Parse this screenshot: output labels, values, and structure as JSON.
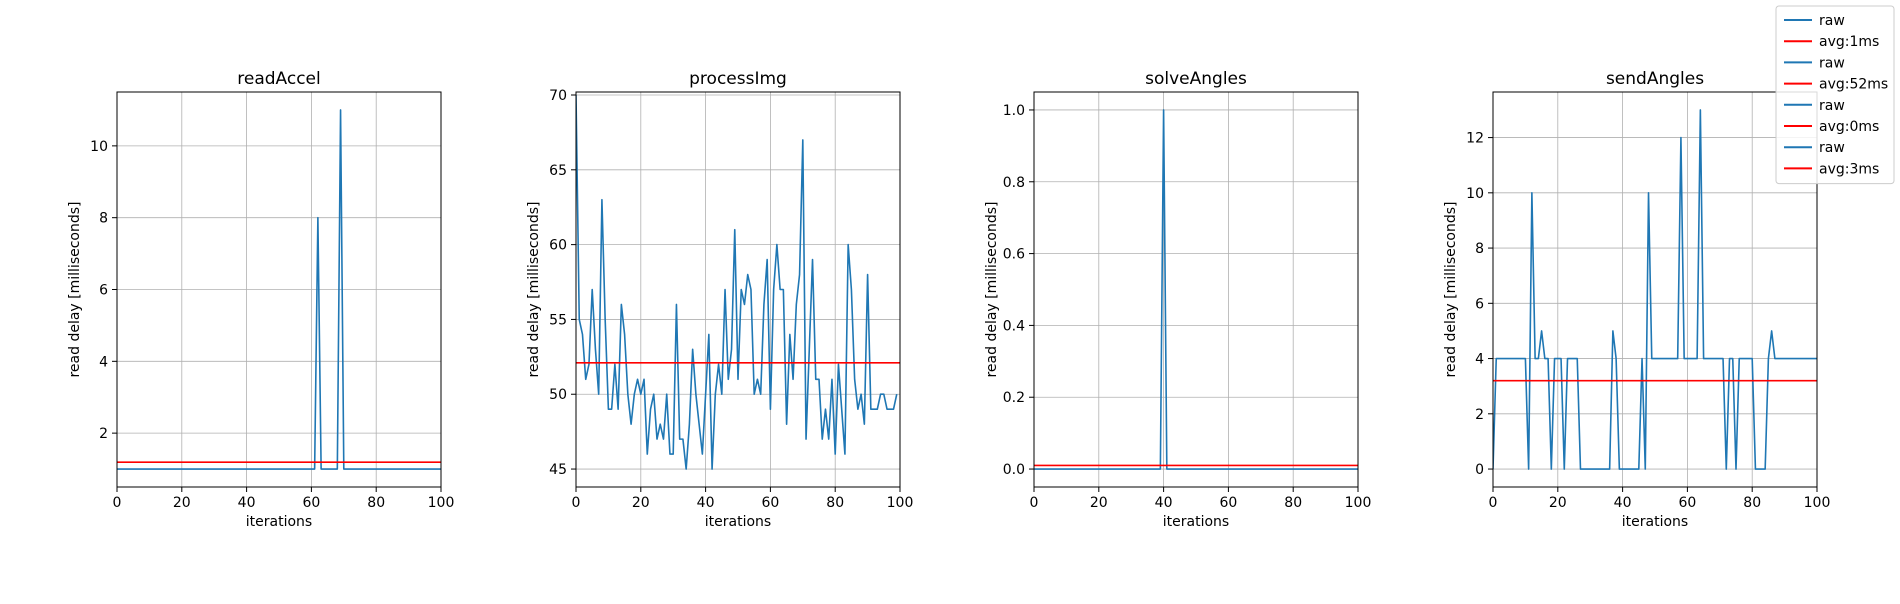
{
  "chart_data": [
    {
      "type": "line",
      "title": "readAccel",
      "xlabel": "iterations",
      "ylabel": "read delay [milliseconds]",
      "xlim": [
        0,
        100
      ],
      "ylim": [
        0.5,
        11.5
      ],
      "xticks": [
        0,
        20,
        40,
        60,
        80,
        100
      ],
      "yticks": [
        2,
        4,
        6,
        8,
        10
      ],
      "ytick_decimals": 0,
      "grid": true,
      "series": [
        {
          "name": "raw",
          "color": "#1f77b4",
          "x": [
            0,
            60,
            61,
            62,
            63,
            68,
            69,
            70,
            100
          ],
          "y": [
            1,
            1,
            1,
            8,
            1,
            1,
            11,
            1,
            1
          ]
        },
        {
          "name": "avg:1ms",
          "color": "#ff0000",
          "x": [
            0,
            100
          ],
          "y": [
            1.19,
            1.19
          ]
        }
      ]
    },
    {
      "type": "line",
      "title": "processImg",
      "xlabel": "iterations",
      "ylabel": "read delay [milliseconds]",
      "xlim": [
        0,
        100
      ],
      "ylim": [
        43.8,
        70.2
      ],
      "xticks": [
        0,
        20,
        40,
        60,
        80,
        100
      ],
      "yticks": [
        45,
        50,
        55,
        60,
        65,
        70
      ],
      "ytick_decimals": 0,
      "grid": true,
      "series": [
        {
          "name": "raw",
          "color": "#1f77b4",
          "x": [
            0,
            1,
            2,
            3,
            4,
            5,
            6,
            7,
            8,
            9,
            10,
            11,
            12,
            13,
            14,
            15,
            16,
            17,
            18,
            19,
            20,
            21,
            22,
            23,
            24,
            25,
            26,
            27,
            28,
            29,
            30,
            31,
            32,
            33,
            34,
            35,
            36,
            37,
            38,
            39,
            40,
            41,
            42,
            43,
            44,
            45,
            46,
            47,
            48,
            49,
            50,
            51,
            52,
            53,
            54,
            55,
            56,
            57,
            58,
            59,
            60,
            61,
            62,
            63,
            64,
            65,
            66,
            67,
            68,
            69,
            70,
            71,
            72,
            73,
            74,
            75,
            76,
            77,
            78,
            79,
            80,
            81,
            82,
            83,
            84,
            85,
            86,
            87,
            88,
            89,
            90,
            91,
            92,
            93,
            94,
            95,
            96,
            97,
            98,
            99
          ],
          "y": [
            70,
            55,
            54,
            51,
            52,
            57,
            53,
            50,
            63,
            55,
            49,
            49,
            52,
            49,
            56,
            54,
            50,
            48,
            50,
            51,
            50,
            51,
            46,
            49,
            50,
            47,
            48,
            47,
            50,
            46,
            46,
            56,
            47,
            47,
            45,
            48,
            53,
            50,
            48,
            46,
            50,
            54,
            45,
            50,
            52,
            50,
            57,
            51,
            53,
            61,
            51,
            57,
            56,
            58,
            57,
            50,
            51,
            50,
            56,
            59,
            49,
            57,
            60,
            57,
            57,
            48,
            54,
            51,
            56,
            58,
            67,
            47,
            53,
            59,
            51,
            51,
            47,
            49,
            47,
            51,
            46,
            52,
            49,
            46,
            60,
            57,
            51,
            49,
            50,
            48,
            58,
            49,
            49,
            49,
            50,
            50,
            49,
            49,
            49,
            50
          ]
        },
        {
          "name": "avg:52ms",
          "color": "#ff0000",
          "x": [
            0,
            100
          ],
          "y": [
            52.1,
            52.1
          ]
        }
      ]
    },
    {
      "type": "line",
      "title": "solveAngles",
      "xlabel": "iterations",
      "ylabel": "read delay [milliseconds]",
      "xlim": [
        0,
        100
      ],
      "ylim": [
        -0.05,
        1.05
      ],
      "xticks": [
        0,
        20,
        40,
        60,
        80,
        100
      ],
      "yticks": [
        0.0,
        0.2,
        0.4,
        0.6,
        0.8,
        1.0
      ],
      "ytick_decimals": 1,
      "grid": true,
      "series": [
        {
          "name": "raw",
          "color": "#1f77b4",
          "x": [
            0,
            39,
            40,
            41,
            100
          ],
          "y": [
            0,
            0,
            1,
            0,
            0
          ]
        },
        {
          "name": "avg:0ms",
          "color": "#ff0000",
          "x": [
            0,
            100
          ],
          "y": [
            0.01,
            0.01
          ]
        }
      ]
    },
    {
      "type": "line",
      "title": "sendAngles",
      "xlabel": "iterations",
      "ylabel": "read delay [milliseconds]",
      "xlim": [
        0,
        100
      ],
      "ylim": [
        -0.65,
        13.65
      ],
      "xticks": [
        0,
        20,
        40,
        60,
        80,
        100
      ],
      "yticks": [
        0,
        2,
        4,
        6,
        8,
        10,
        12
      ],
      "ytick_decimals": 0,
      "grid": true,
      "series": [
        {
          "name": "raw",
          "color": "#1f77b4",
          "x": [
            0,
            1,
            2,
            3,
            4,
            5,
            6,
            7,
            8,
            9,
            10,
            11,
            12,
            13,
            14,
            15,
            16,
            17,
            18,
            19,
            20,
            21,
            22,
            23,
            24,
            25,
            26,
            27,
            28,
            29,
            30,
            31,
            32,
            33,
            34,
            35,
            36,
            37,
            38,
            39,
            40,
            41,
            42,
            43,
            44,
            45,
            46,
            47,
            48,
            49,
            50,
            51,
            52,
            53,
            54,
            55,
            56,
            57,
            58,
            59,
            60,
            61,
            62,
            63,
            64,
            65,
            66,
            67,
            68,
            69,
            70,
            71,
            72,
            73,
            74,
            75,
            76,
            77,
            78,
            79,
            80,
            81,
            82,
            83,
            84,
            85,
            86,
            87,
            88,
            89,
            90,
            91,
            92,
            93,
            94,
            95,
            96,
            97,
            98,
            99,
            100
          ],
          "y": [
            0,
            4,
            4,
            4,
            4,
            4,
            4,
            4,
            4,
            4,
            4,
            0,
            10,
            4,
            4,
            5,
            4,
            4,
            0,
            4,
            4,
            4,
            0,
            4,
            4,
            4,
            4,
            0,
            0,
            0,
            0,
            0,
            0,
            0,
            0,
            0,
            0,
            5,
            4,
            0,
            0,
            0,
            0,
            0,
            0,
            0,
            4,
            0,
            10,
            4,
            4,
            4,
            4,
            4,
            4,
            4,
            4,
            4,
            12,
            4,
            4,
            4,
            4,
            4,
            13,
            4,
            4,
            4,
            4,
            4,
            4,
            4,
            0,
            4,
            4,
            0,
            4,
            4,
            4,
            4,
            4,
            0,
            0,
            0,
            0,
            4,
            5,
            4,
            4,
            4,
            4,
            4,
            4,
            4,
            4,
            4,
            4,
            4,
            4,
            4,
            4
          ]
        },
        {
          "name": "avg:3ms",
          "color": "#ff0000",
          "x": [
            0,
            100
          ],
          "y": [
            3.2,
            3.2
          ]
        }
      ]
    }
  ],
  "legend": {
    "placement": "top-right",
    "entries": [
      {
        "label": "raw",
        "color": "#1f77b4"
      },
      {
        "label": "avg:1ms",
        "color": "#ff0000"
      },
      {
        "label": "raw",
        "color": "#1f77b4"
      },
      {
        "label": "avg:52ms",
        "color": "#ff0000"
      },
      {
        "label": "raw",
        "color": "#1f77b4"
      },
      {
        "label": "avg:0ms",
        "color": "#ff0000"
      },
      {
        "label": "raw",
        "color": "#1f77b4"
      },
      {
        "label": "avg:3ms",
        "color": "#ff0000"
      }
    ]
  }
}
